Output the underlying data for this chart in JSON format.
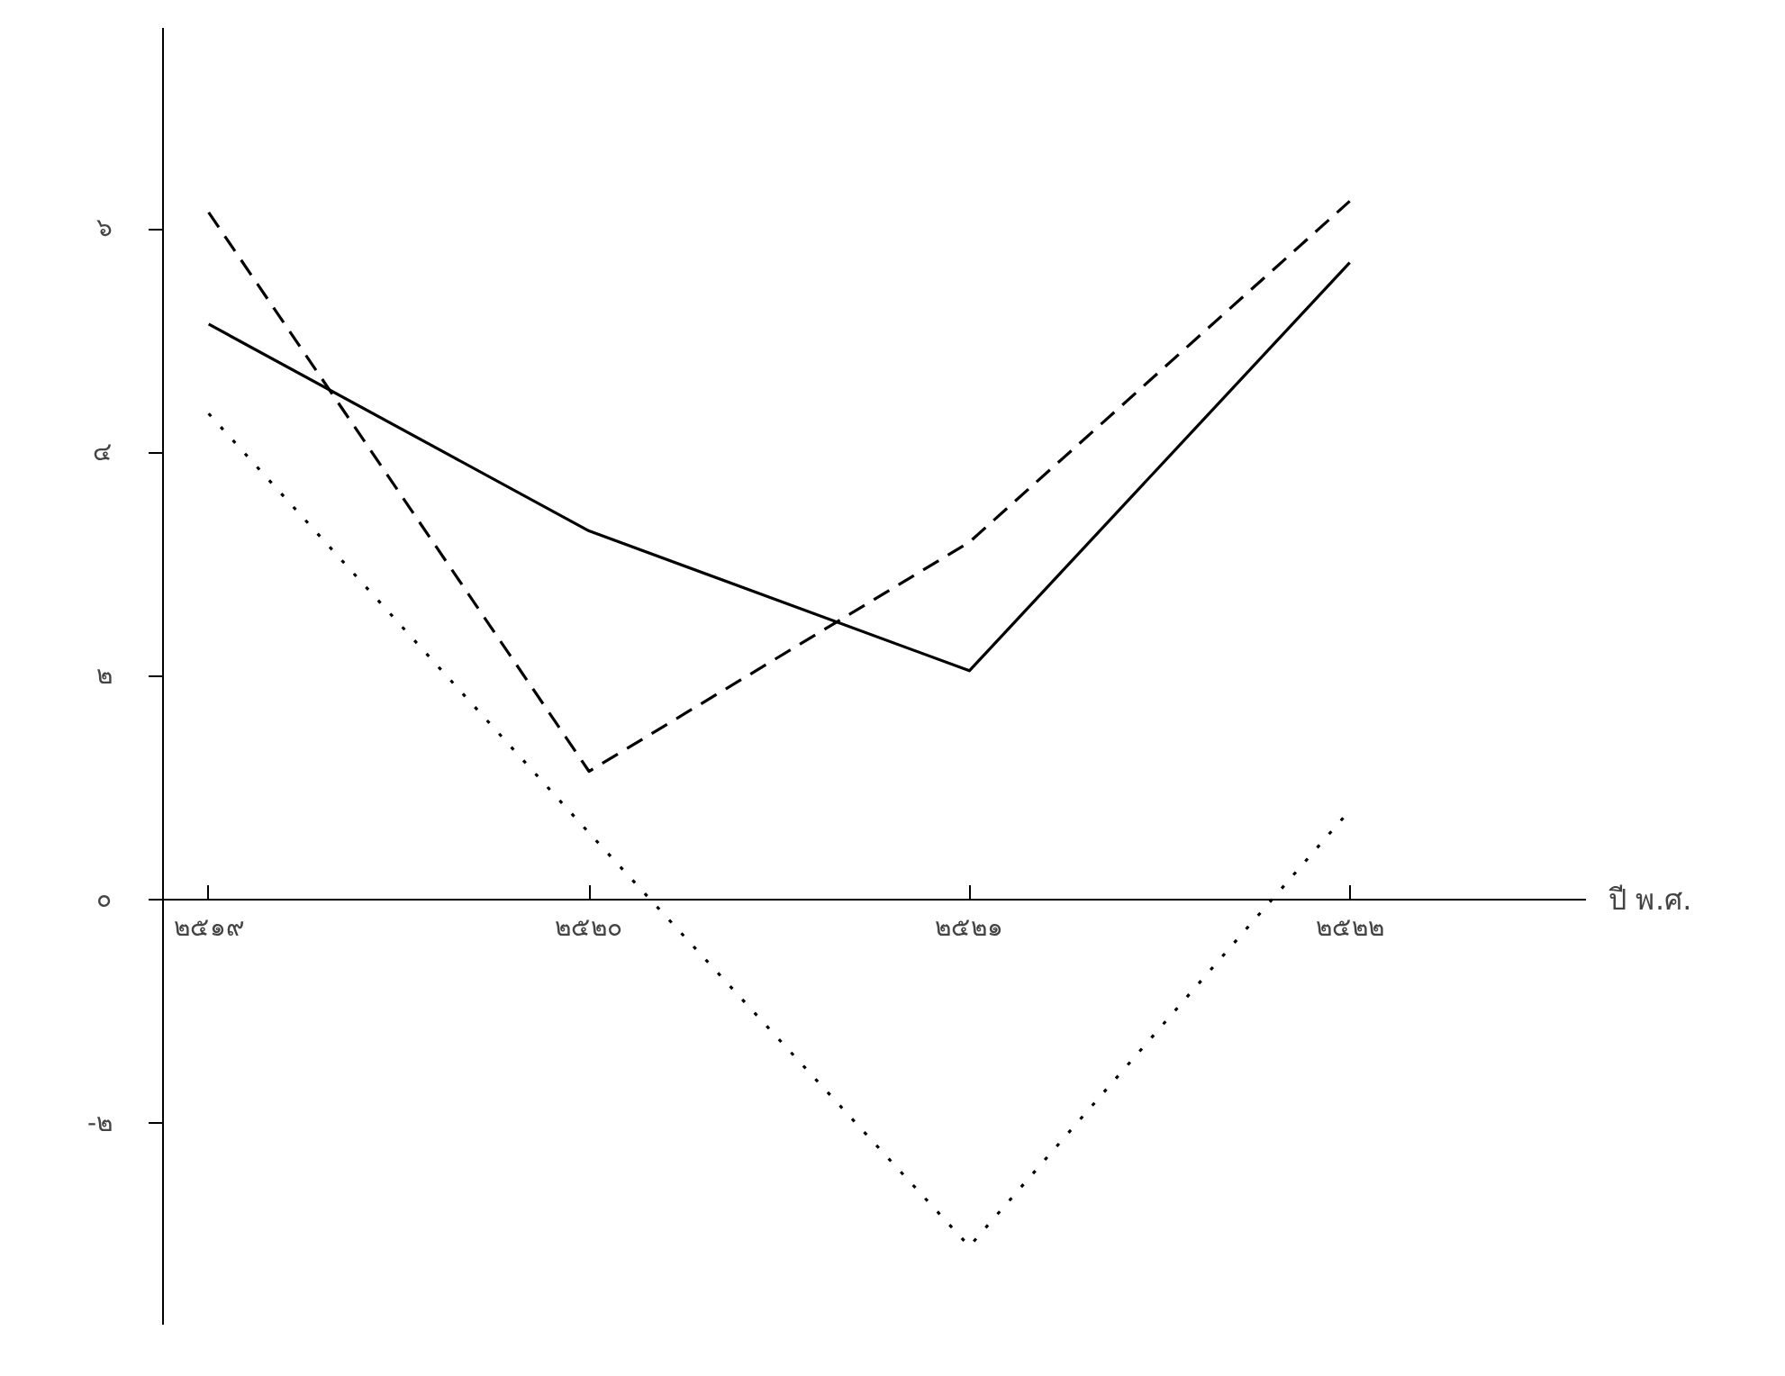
{
  "chart_data": {
    "type": "line",
    "xlabel": "ปี พ.ศ.",
    "categories": [
      "๒๕๑๙",
      "๒๕๒๐",
      "๒๕๒๑",
      "๒๕๒๒"
    ],
    "series": [
      {
        "color": "#000000",
        "line_style": "solid",
        "values": [
          5.15,
          3.3,
          2.05,
          5.7
        ]
      },
      {
        "color": "#000000",
        "line_style": "dashed",
        "values": [
          6.15,
          1.15,
          3.2,
          6.25
        ]
      },
      {
        "color": "#000000",
        "line_style": "dotted",
        "values": [
          4.35,
          0.6,
          -3.1,
          0.8
        ]
      }
    ],
    "ylim": [
      -3.8,
      7.8
    ],
    "yticks": [
      {
        "value": -2,
        "label": "-๒"
      },
      {
        "value": 0,
        "label": "๐"
      },
      {
        "value": 2,
        "label": "๒"
      },
      {
        "value": 4,
        "label": "๔"
      },
      {
        "value": 6,
        "label": "๖"
      }
    ],
    "grid": false,
    "marker": "none"
  }
}
